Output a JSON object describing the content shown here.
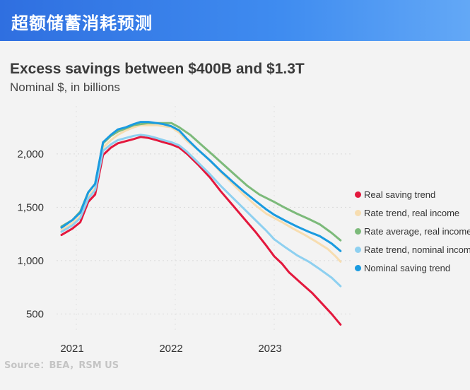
{
  "banner": {
    "title": "超额储蓄消耗预测"
  },
  "source": "Source：BEA，RSM US",
  "chart_data": {
    "type": "line",
    "title": "Excess savings between $400B and $1.3T",
    "subtitle": "Nominal $, in billions",
    "xlabel": "",
    "ylabel": "",
    "x_ticks": [
      {
        "label": "2021",
        "x": 2021.0
      },
      {
        "label": "2022",
        "x": 2022.0
      },
      {
        "label": "2023",
        "x": 2023.0
      }
    ],
    "y_ticks": [
      {
        "label": "2,000",
        "value": 2000
      },
      {
        "label": "1,500",
        "value": 1500
      },
      {
        "label": "1,000",
        "value": 1000
      },
      {
        "label": "500",
        "value": 500
      }
    ],
    "xlim": [
      2020.8,
      2023.8
    ],
    "ylim": [
      330,
      2450
    ],
    "grid": true,
    "legend_position": "right",
    "series": [
      {
        "name": "Real saving trend",
        "color": "#e3183d",
        "points": [
          [
            2020.85,
            1240
          ],
          [
            2020.96,
            1300
          ],
          [
            2021.04,
            1360
          ],
          [
            2021.12,
            1550
          ],
          [
            2021.19,
            1620
          ],
          [
            2021.27,
            1990
          ],
          [
            2021.35,
            2060
          ],
          [
            2021.42,
            2100
          ],
          [
            2021.5,
            2120
          ],
          [
            2021.58,
            2140
          ],
          [
            2021.65,
            2160
          ],
          [
            2021.73,
            2150
          ],
          [
            2021.81,
            2130
          ],
          [
            2021.88,
            2110
          ],
          [
            2021.96,
            2090
          ],
          [
            2022.04,
            2060
          ],
          [
            2022.12,
            2000
          ],
          [
            2022.23,
            1900
          ],
          [
            2022.35,
            1780
          ],
          [
            2022.46,
            1650
          ],
          [
            2022.58,
            1520
          ],
          [
            2022.69,
            1400
          ],
          [
            2022.81,
            1270
          ],
          [
            2022.92,
            1140
          ],
          [
            2023.0,
            1040
          ],
          [
            2023.08,
            970
          ],
          [
            2023.15,
            890
          ],
          [
            2023.27,
            790
          ],
          [
            2023.38,
            700
          ],
          [
            2023.48,
            600
          ],
          [
            2023.58,
            500
          ],
          [
            2023.67,
            400
          ]
        ]
      },
      {
        "name": "Rate trend, real income",
        "color": "#f7ddb0",
        "points": [
          [
            2020.85,
            1290
          ],
          [
            2020.96,
            1350
          ],
          [
            2021.04,
            1420
          ],
          [
            2021.12,
            1600
          ],
          [
            2021.19,
            1680
          ],
          [
            2021.27,
            2060
          ],
          [
            2021.35,
            2130
          ],
          [
            2021.42,
            2180
          ],
          [
            2021.5,
            2220
          ],
          [
            2021.58,
            2250
          ],
          [
            2021.65,
            2270
          ],
          [
            2021.73,
            2270
          ],
          [
            2021.81,
            2270
          ],
          [
            2021.88,
            2260
          ],
          [
            2021.96,
            2250
          ],
          [
            2022.04,
            2200
          ],
          [
            2022.12,
            2120
          ],
          [
            2022.23,
            2040
          ],
          [
            2022.35,
            1940
          ],
          [
            2022.46,
            1830
          ],
          [
            2022.58,
            1720
          ],
          [
            2022.69,
            1620
          ],
          [
            2022.81,
            1520
          ],
          [
            2022.92,
            1440
          ],
          [
            2023.0,
            1400
          ],
          [
            2023.08,
            1360
          ],
          [
            2023.19,
            1300
          ],
          [
            2023.31,
            1240
          ],
          [
            2023.42,
            1180
          ],
          [
            2023.54,
            1110
          ],
          [
            2023.62,
            1040
          ],
          [
            2023.67,
            990
          ]
        ]
      },
      {
        "name": "Rate average, real income",
        "color": "#7cba7a",
        "points": [
          [
            2020.85,
            1320
          ],
          [
            2020.96,
            1380
          ],
          [
            2021.04,
            1460
          ],
          [
            2021.12,
            1640
          ],
          [
            2021.19,
            1720
          ],
          [
            2021.27,
            2100
          ],
          [
            2021.35,
            2170
          ],
          [
            2021.42,
            2210
          ],
          [
            2021.5,
            2240
          ],
          [
            2021.58,
            2270
          ],
          [
            2021.65,
            2280
          ],
          [
            2021.73,
            2290
          ],
          [
            2021.81,
            2290
          ],
          [
            2021.88,
            2290
          ],
          [
            2021.96,
            2290
          ],
          [
            2022.04,
            2250
          ],
          [
            2022.15,
            2180
          ],
          [
            2022.27,
            2080
          ],
          [
            2022.38,
            1990
          ],
          [
            2022.5,
            1890
          ],
          [
            2022.62,
            1790
          ],
          [
            2022.73,
            1700
          ],
          [
            2022.85,
            1620
          ],
          [
            2023.0,
            1550
          ],
          [
            2023.12,
            1490
          ],
          [
            2023.23,
            1440
          ],
          [
            2023.35,
            1390
          ],
          [
            2023.46,
            1340
          ],
          [
            2023.58,
            1260
          ],
          [
            2023.67,
            1190
          ]
        ]
      },
      {
        "name": "Rate trend, nominal income",
        "color": "#8ed0f0",
        "points": [
          [
            2020.85,
            1270
          ],
          [
            2020.96,
            1330
          ],
          [
            2021.04,
            1400
          ],
          [
            2021.12,
            1580
          ],
          [
            2021.19,
            1660
          ],
          [
            2021.27,
            2030
          ],
          [
            2021.35,
            2090
          ],
          [
            2021.42,
            2130
          ],
          [
            2021.5,
            2150
          ],
          [
            2021.58,
            2170
          ],
          [
            2021.65,
            2180
          ],
          [
            2021.73,
            2170
          ],
          [
            2021.81,
            2150
          ],
          [
            2021.88,
            2130
          ],
          [
            2021.96,
            2110
          ],
          [
            2022.04,
            2080
          ],
          [
            2022.12,
            2020
          ],
          [
            2022.23,
            1920
          ],
          [
            2022.35,
            1810
          ],
          [
            2022.46,
            1700
          ],
          [
            2022.58,
            1590
          ],
          [
            2022.69,
            1490
          ],
          [
            2022.81,
            1380
          ],
          [
            2022.92,
            1280
          ],
          [
            2023.0,
            1200
          ],
          [
            2023.12,
            1120
          ],
          [
            2023.23,
            1050
          ],
          [
            2023.35,
            990
          ],
          [
            2023.46,
            920
          ],
          [
            2023.58,
            840
          ],
          [
            2023.67,
            760
          ]
        ]
      },
      {
        "name": "Nominal saving trend",
        "color": "#1a9be0",
        "points": [
          [
            2020.85,
            1310
          ],
          [
            2020.96,
            1380
          ],
          [
            2021.04,
            1450
          ],
          [
            2021.12,
            1640
          ],
          [
            2021.19,
            1720
          ],
          [
            2021.27,
            2110
          ],
          [
            2021.35,
            2180
          ],
          [
            2021.42,
            2230
          ],
          [
            2021.5,
            2250
          ],
          [
            2021.58,
            2280
          ],
          [
            2021.65,
            2300
          ],
          [
            2021.73,
            2300
          ],
          [
            2021.81,
            2290
          ],
          [
            2021.88,
            2280
          ],
          [
            2021.96,
            2260
          ],
          [
            2022.04,
            2220
          ],
          [
            2022.12,
            2140
          ],
          [
            2022.23,
            2040
          ],
          [
            2022.35,
            1940
          ],
          [
            2022.46,
            1840
          ],
          [
            2022.58,
            1740
          ],
          [
            2022.69,
            1650
          ],
          [
            2022.81,
            1560
          ],
          [
            2022.92,
            1480
          ],
          [
            2023.0,
            1430
          ],
          [
            2023.12,
            1370
          ],
          [
            2023.23,
            1320
          ],
          [
            2023.35,
            1270
          ],
          [
            2023.46,
            1230
          ],
          [
            2023.58,
            1160
          ],
          [
            2023.67,
            1090
          ]
        ]
      }
    ]
  }
}
